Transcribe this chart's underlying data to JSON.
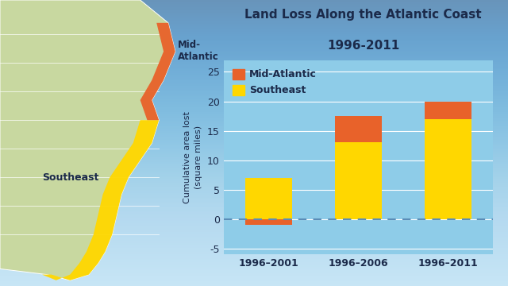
{
  "title_line1": "Land Loss Along the Atlantic Coast",
  "title_line2": "1996-2011",
  "ylabel": "Cumulative area lost\n(square miles)",
  "categories": [
    "1996–2001",
    "1996–2006",
    "1996–2011"
  ],
  "southeast_values": [
    7.0,
    13.0,
    17.0
  ],
  "midatlantic_values": [
    -1.0,
    4.5,
    3.0
  ],
  "southeast_color": "#FFD700",
  "midatlantic_color": "#E8622A",
  "bg_color_top": "#A8D8F0",
  "bg_color_bottom": "#60B8E0",
  "land_color": "#C8D8A0",
  "land_edge_color": "#FFFFFF",
  "title_color": "#1B2A4A",
  "axis_label_color": "#1B2A4A",
  "tick_color": "#1B2A4A",
  "ylim": [
    -6,
    27
  ],
  "yticks": [
    -5,
    0,
    5,
    10,
    15,
    20,
    25
  ],
  "legend_midatlantic": "Mid-Atlantic",
  "legend_southeast": "Southeast",
  "dashed_line_color": "#5B8DB8",
  "grid_color": "#FFFFFF",
  "chart_bg": "#8ECCE8"
}
